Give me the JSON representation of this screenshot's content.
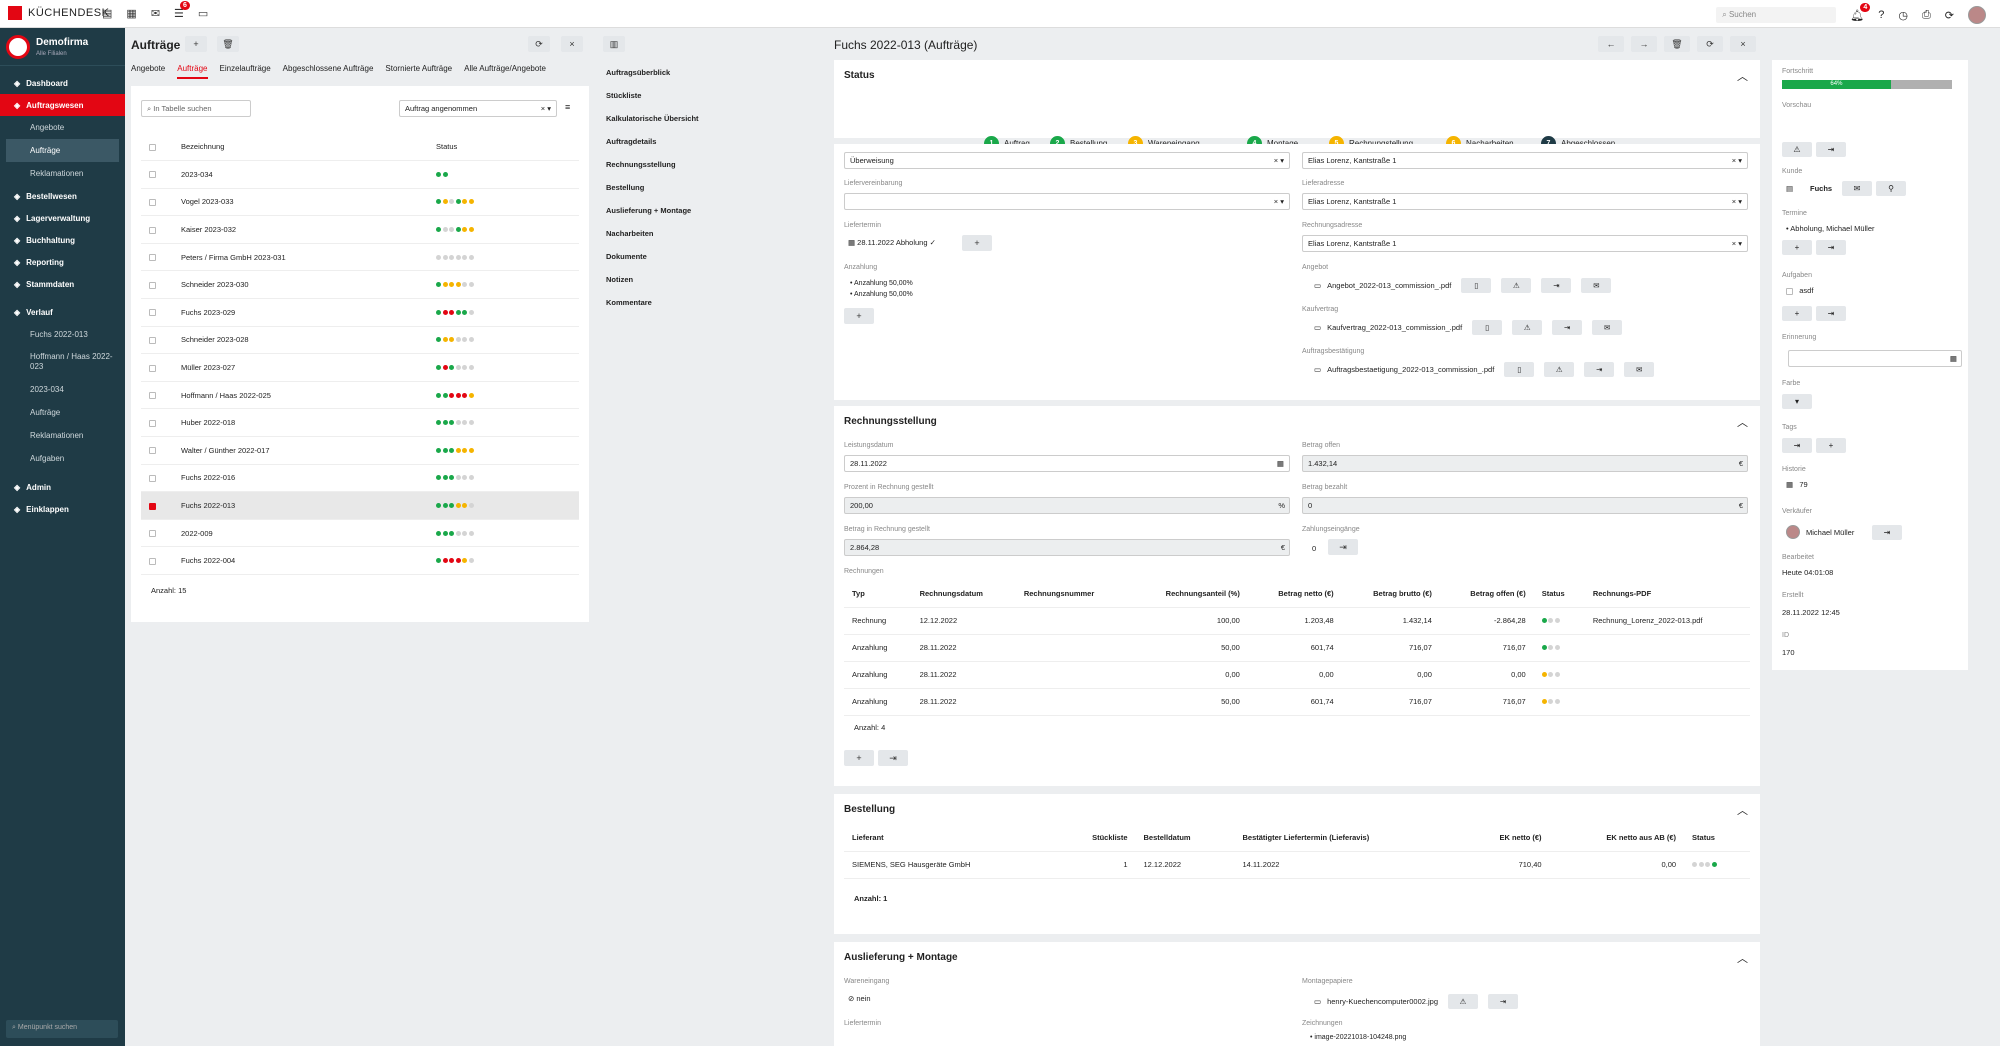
{
  "top": {
    "brand": "KÜCHENDESK",
    "badge": "6",
    "search_placeholder": "Suchen",
    "bell_badge": "4"
  },
  "company": {
    "name": "Demofirma",
    "sub": "Alle Filialen"
  },
  "nav": [
    {
      "label": "Dashboard",
      "type": "main"
    },
    {
      "label": "Auftragswesen",
      "type": "active"
    },
    {
      "label": "Angebote",
      "type": "sub"
    },
    {
      "label": "Aufträge",
      "type": "subsel"
    },
    {
      "label": "Reklamationen",
      "type": "sub"
    },
    {
      "label": "Bestellwesen",
      "type": "main"
    },
    {
      "label": "Lagerverwaltung",
      "type": "main"
    },
    {
      "label": "Buchhaltung",
      "type": "main"
    },
    {
      "label": "Reporting",
      "type": "main"
    },
    {
      "label": "Stammdaten",
      "type": "main"
    },
    {
      "label": "Verlauf",
      "type": "main"
    },
    {
      "label": "Fuchs 2022-013",
      "type": "sub"
    },
    {
      "label": "Hoffmann / Haas 2022-023",
      "type": "sub2"
    },
    {
      "label": "2023-034",
      "type": "sub"
    },
    {
      "label": "Aufträge",
      "type": "sub"
    },
    {
      "label": "Reklamationen",
      "type": "sub"
    },
    {
      "label": "Aufgaben",
      "type": "sub"
    },
    {
      "label": "Admin",
      "type": "main"
    },
    {
      "label": "Einklappen",
      "type": "main"
    }
  ],
  "sb_search": "Menüpunkt suchen",
  "list": {
    "title": "Aufträge",
    "tabs": [
      "Angebote",
      "Aufträge",
      "Einzelaufträge",
      "Abgeschlossene Aufträge",
      "Stornierte Aufträge",
      "Alle Aufträge/Angebote"
    ],
    "search": "In Tabelle suchen",
    "filter": "Auftrag angenommen",
    "col_name": "Bezeichnung",
    "col_status": "Status",
    "count": "Anzahl: 15",
    "rows": [
      [
        "2023-034",
        "gg"
      ],
      [
        "Vogel 2023-033",
        "gyxgyy"
      ],
      [
        "Kaiser 2023-032",
        "gxxgyy"
      ],
      [
        "Peters / Firma GmbH 2023-031",
        "xxxxxx"
      ],
      [
        "Schneider 2023-030",
        "gyyyxx"
      ],
      [
        "Fuchs 2023-029",
        "grrggx"
      ],
      [
        "Schneider 2023-028",
        "gyyxxx"
      ],
      [
        "Müller 2023-027",
        "grgxxx"
      ],
      [
        "Hoffmann / Haas 2022-025",
        "ggrrry"
      ],
      [
        "Huber 2022-018",
        "gggxxx"
      ],
      [
        "Walter / Günther 2022-017",
        "gggyyy"
      ],
      [
        "Fuchs 2022-016",
        "gggxxx"
      ],
      [
        "Fuchs 2022-013",
        "gggyyx"
      ],
      [
        "2022-009",
        "gggxxx"
      ],
      [
        "Fuchs 2022-004",
        "grrryx"
      ]
    ]
  },
  "subnav": [
    "Auftragsüberblick",
    "Stückliste",
    "Kalkulatorische Übersicht",
    "Auftragdetails",
    "Rechnungsstellung",
    "Bestellung",
    "Auslieferung + Montage",
    "Nacharbeiten",
    "Dokumente",
    "Notizen",
    "Kommentare"
  ],
  "detail": {
    "title": "Fuchs 2022-013 (Aufträge)"
  },
  "status": {
    "title": "Status",
    "steps": [
      {
        "n": "1",
        "label": "Auftrag",
        "c": "#1aa84a"
      },
      {
        "n": "2",
        "label": "Bestellung",
        "c": "#1aa84a"
      },
      {
        "n": "3",
        "label": "Wareneingang",
        "c": "#f5b400"
      },
      {
        "n": "4",
        "label": "Montage",
        "c": "#1aa84a"
      },
      {
        "n": "5",
        "label": "Rechnungstellung",
        "c": "#f5b400"
      },
      {
        "n": "6",
        "label": "Nacharbeiten",
        "c": "#f5b400"
      },
      {
        "n": "7",
        "label": "Abgeschlossen",
        "c": "#1f3b46"
      }
    ]
  },
  "details": {
    "zahlung": "Überweisung",
    "kunde": "Elias Lorenz, Kantstraße 1",
    "l_liefer": "Liefervereinbarung",
    "l_lieferadresse": "Lieferadresse",
    "lieferadresse": "Elias Lorenz, Kantstraße 1",
    "l_liefertermin": "Liefertermin",
    "liefertermin": "28.11.2022 Abholung ✓",
    "l_rechadr": "Rechnungsadresse",
    "rechadr": "Elias Lorenz, Kantstraße 1",
    "l_anz": "Anzahlung",
    "anz1": "Anzahlung 50,00%",
    "anz2": "Anzahlung 50,00%",
    "l_angebot": "Angebot",
    "angebot": "Angebot_2022-013_commission_.pdf",
    "l_kauf": "Kaufvertrag",
    "kauf": "Kaufvertrag_2022-013_commission_.pdf",
    "l_ab": "Auftragsbestätigung",
    "ab": "Auftragsbestaetigung_2022-013_commission_.pdf"
  },
  "rech": {
    "title": "Rechnungsstellung",
    "l_leist": "Leistungsdatum",
    "leist": "28.11.2022",
    "l_offen": "Betrag offen",
    "offen": "1.432,14",
    "l_proz": "Prozent in Rechnung gestellt",
    "proz": "200,00",
    "l_bez": "Betrag bezahlt",
    "bez": "0",
    "l_betrag": "Betrag in Rechnung gestellt",
    "betrag": "2.864,28",
    "l_zahl": "Zahlungseingänge",
    "zahl": "0",
    "l_rechnungen": "Rechnungen",
    "cols": [
      "Typ",
      "Rechnungsdatum",
      "Rechnungsnummer",
      "Rechnungsanteil (%)",
      "Betrag netto (€)",
      "Betrag brutto (€)",
      "Betrag offen (€)",
      "Status",
      "Rechnungs-PDF"
    ],
    "rows": [
      [
        "Rechnung",
        "12.12.2022",
        "",
        "100,00",
        "1.203,48",
        "1.432,14",
        "-2.864,28",
        "gxx",
        "Rechnung_Lorenz_2022-013.pdf"
      ],
      [
        "Anzahlung",
        "28.11.2022",
        "",
        "50,00",
        "601,74",
        "716,07",
        "716,07",
        "gxx",
        ""
      ],
      [
        "Anzahlung",
        "28.11.2022",
        "",
        "0,00",
        "0,00",
        "0,00",
        "0,00",
        "yxx",
        ""
      ],
      [
        "Anzahlung",
        "28.11.2022",
        "",
        "50,00",
        "601,74",
        "716,07",
        "716,07",
        "yxx",
        ""
      ]
    ],
    "count": "Anzahl: 4"
  },
  "best": {
    "title": "Bestellung",
    "cols": [
      "Lieferant",
      "Stückliste",
      "Bestelldatum",
      "Bestätigter Liefertermin (Lieferavis)",
      "EK netto (€)",
      "EK netto aus AB (€)",
      "Status"
    ],
    "row": [
      "SIEMENS, SEG Hausgeräte GmbH",
      "1",
      "12.12.2022",
      "14.11.2022",
      "710,40",
      "0,00",
      "xxxg"
    ],
    "count": "Anzahl: 1"
  },
  "ausl": {
    "title": "Auslieferung + Montage",
    "l_we": "Wareneingang",
    "we": "nein",
    "l_mp": "Montagepapiere",
    "mp": "henry-Kuechencomputer0002.jpg",
    "l_lt": "Liefertermin",
    "l_z": "Zeichnungen",
    "z": "image-20221018-104248.png"
  },
  "right": {
    "l_fort": "Fortschritt",
    "fort": "64%",
    "fort_value": 0.64,
    "l_vor": "Vorschau",
    "l_kunde": "Kunde",
    "kunde": "Fuchs",
    "l_termine": "Termine",
    "termin": "Abholung, Michael Müller",
    "l_aufg": "Aufgaben",
    "aufg": "asdf",
    "l_erin": "Erinnerung",
    "l_farbe": "Farbe",
    "l_tags": "Tags",
    "l_hist": "Historie",
    "hist": "79",
    "l_verk": "Verkäufer",
    "verk": "Michael Müller",
    "l_bearb": "Bearbeitet",
    "bearb": "Heute 04:01:08",
    "l_erst": "Erstellt",
    "erst": "28.11.2022 12:45",
    "l_id": "ID",
    "id": "170"
  }
}
